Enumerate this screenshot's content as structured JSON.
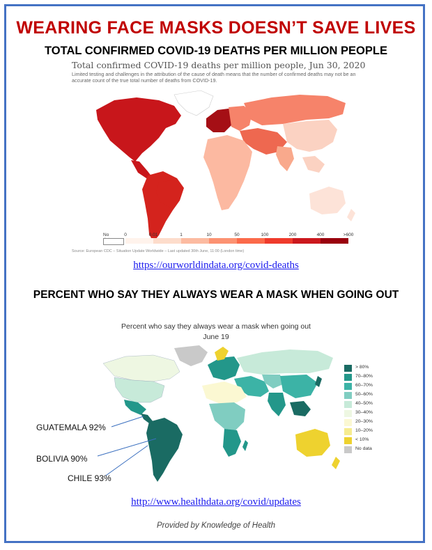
{
  "header": {
    "title": "WEARING FACE MASKS DOESN’T SAVE LIVES",
    "subtitle": "TOTAL CONFIRMED COVID-19 DEATHS PER MILLION PEOPLE"
  },
  "deaths_map": {
    "title": "Total confirmed COVID-19 deaths per million people, Jun 30, 2020",
    "note": "Limited testing and challenges in the attribution of the cause of death means that the number of confirmed deaths may not be an accurate count of the true total number of deaths from COVID-19.",
    "legend": {
      "no_data_label": "No data",
      "ticks": [
        "0",
        "0.01",
        "1",
        "10",
        "50",
        "100",
        "200",
        "400",
        ">600"
      ],
      "colors": [
        "#fff3ec",
        "#fddccb",
        "#fcbba1",
        "#fc9272",
        "#fb6a4a",
        "#ef3b2c",
        "#cb181d",
        "#99000d"
      ]
    },
    "source": "Source: European CDC – Situation Update Worldwide – Last updated 30th June, 11:00 (London time)",
    "colors": {
      "north_america": "#c8161b",
      "south_america": "#d4231d",
      "europe_west": "#a50f15",
      "europe_east": "#f6836a",
      "russia": "#f6836a",
      "middle_east": "#ee6850",
      "africa": "#fcb9a1",
      "asia": "#fbd2c2",
      "india": "#f9a98c",
      "australia": "#fde3d8",
      "greenland": "#ffffff"
    }
  },
  "link1": "https://ourworldindata.org/covid-deaths",
  "mask_section": {
    "heading": "PERCENT WHO SAY THEY ALWAYS WEAR A MASK WHEN GOING OUT",
    "map_title": "Percent who say they always wear a mask when going out",
    "map_date": "June 19",
    "legend": [
      {
        "label": "> 80%",
        "color": "#1a6b63"
      },
      {
        "label": "70–80%",
        "color": "#23978a"
      },
      {
        "label": "60–70%",
        "color": "#3cb3a6"
      },
      {
        "label": "50–60%",
        "color": "#80cdc1"
      },
      {
        "label": "40–50%",
        "color": "#c7ead9"
      },
      {
        "label": "30–40%",
        "color": "#eef7e2"
      },
      {
        "label": "20–30%",
        "color": "#fbf8d2"
      },
      {
        "label": "10–20%",
        "color": "#f6ec8f"
      },
      {
        "label": "< 10%",
        "color": "#eed22f"
      },
      {
        "label": "No data",
        "color": "#c9c9c9"
      }
    ],
    "annotations": [
      {
        "label": "GUATEMALA 92%"
      },
      {
        "label": "BOLIVIA 90%"
      },
      {
        "label": "CHILE 93%"
      }
    ]
  },
  "link2": "http://www.healthdata.org/covid/updates",
  "footer": "Provided by Knowledge of Health"
}
